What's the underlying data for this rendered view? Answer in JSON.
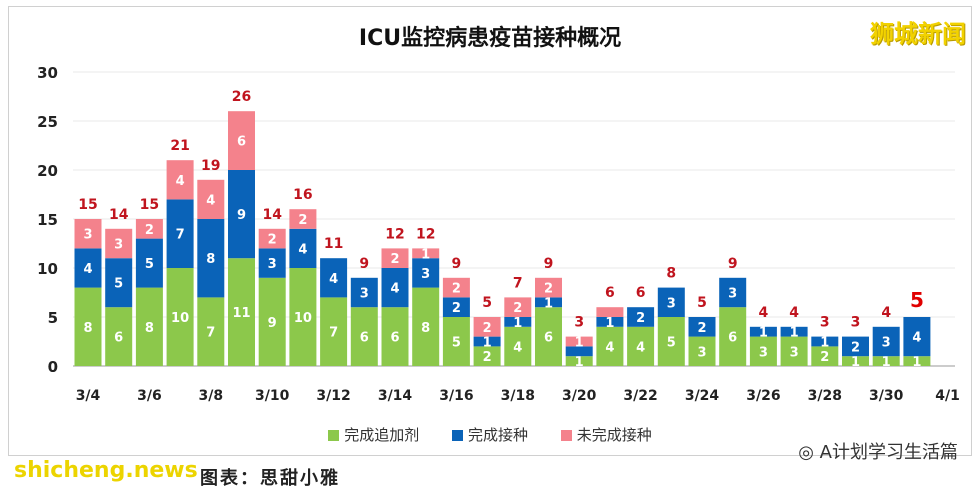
{
  "chart_data": {
    "type": "bar",
    "stacked": true,
    "title": "ICU监控病患疫苗接种概况",
    "categories": [
      "3/4",
      "3/5",
      "3/6",
      "3/7",
      "3/8",
      "3/9",
      "3/10",
      "3/11",
      "3/12",
      "3/13",
      "3/14",
      "3/15",
      "3/16",
      "3/17",
      "3/18",
      "3/19",
      "3/20",
      "3/21",
      "3/22",
      "3/23",
      "3/24",
      "3/25",
      "3/26",
      "3/27",
      "3/28",
      "3/29",
      "3/30",
      "3/31"
    ],
    "xticks": [
      "3/4",
      "3/6",
      "3/8",
      "3/10",
      "3/12",
      "3/14",
      "3/16",
      "3/18",
      "3/20",
      "3/22",
      "3/24",
      "3/26",
      "3/28",
      "3/30",
      "4/1"
    ],
    "yticks": [
      0,
      5,
      10,
      15,
      20,
      25,
      30
    ],
    "ylim": [
      0,
      30
    ],
    "grid": true,
    "legend_position": "bottom",
    "series": [
      {
        "name": "完成追加剂",
        "color": "#8cc84b",
        "values": [
          8,
          6,
          8,
          10,
          7,
          11,
          9,
          10,
          7,
          6,
          6,
          8,
          5,
          2,
          4,
          6,
          1,
          4,
          4,
          5,
          3,
          6,
          3,
          3,
          2,
          1,
          1,
          1
        ]
      },
      {
        "name": "完成接种",
        "color": "#0a63b8",
        "values": [
          4,
          5,
          5,
          7,
          8,
          9,
          3,
          4,
          4,
          3,
          4,
          3,
          2,
          1,
          1,
          1,
          1,
          1,
          2,
          3,
          2,
          3,
          1,
          1,
          1,
          2,
          3,
          4
        ]
      },
      {
        "name": "未完成接种",
        "color": "#f4828c",
        "values": [
          3,
          3,
          2,
          4,
          4,
          6,
          2,
          2,
          0,
          0,
          2,
          1,
          2,
          2,
          2,
          2,
          1,
          1,
          0,
          0,
          0,
          0,
          0,
          0,
          0,
          0,
          0,
          0
        ]
      }
    ],
    "totals": [
      15,
      14,
      15,
      21,
      19,
      26,
      14,
      16,
      11,
      9,
      12,
      12,
      9,
      5,
      7,
      9,
      3,
      6,
      6,
      8,
      5,
      9,
      4,
      4,
      3,
      3,
      4,
      5
    ],
    "total_color": "#c0141e"
  },
  "watermark": "狮城新闻",
  "source": "图表：思甜小雅",
  "site": "shicheng.news",
  "account": "A计划学习生活篇"
}
